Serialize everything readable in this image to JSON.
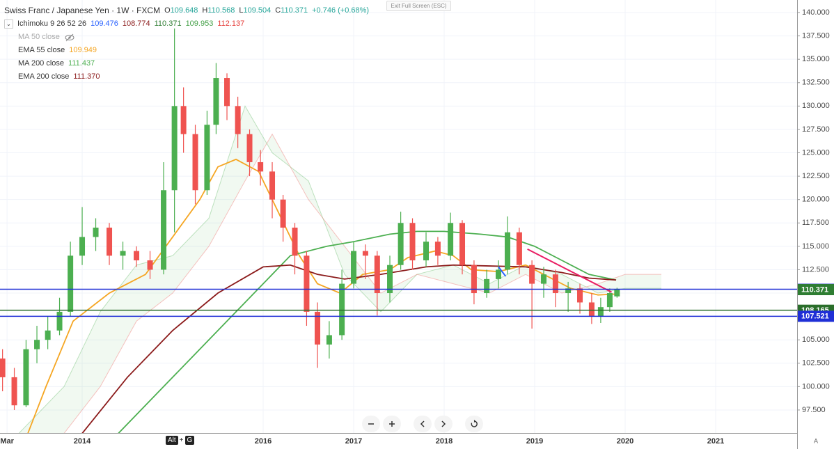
{
  "header": {
    "title": "Swiss Franc / Japanese Yen · 1W · FXCM",
    "ohlc": [
      {
        "label": "O",
        "value": "109.648"
      },
      {
        "label": "H",
        "value": "110.568"
      },
      {
        "label": "L",
        "value": "109.504"
      },
      {
        "label": "C",
        "value": "110.371"
      }
    ],
    "change": "+0.746 (+0.68%)",
    "ichimoku": {
      "name": "Ichimoku 9 26 52 26",
      "values": [
        {
          "v": "109.476",
          "color": "#2962ff"
        },
        {
          "v": "108.774",
          "color": "#8b1a1a"
        },
        {
          "v": "110.371",
          "color": "#2e7d32"
        },
        {
          "v": "109.953",
          "color": "#43a047"
        },
        {
          "v": "112.137",
          "color": "#e53935"
        }
      ]
    },
    "ma50": "MA 50 close"
  },
  "ui": {
    "exit": "Exit Full Screen (ESC)",
    "shortcut": [
      "Alt",
      "+",
      "G"
    ],
    "auto": "A"
  },
  "chart_data": {
    "type": "candlestick",
    "xlim": [
      2013.092,
      2021.9
    ],
    "ylim": [
      95.04,
      141.34
    ],
    "xticks": [
      {
        "value": 2013.17,
        "label": "Mar"
      },
      2014,
      2016,
      2017,
      2018,
      2019,
      2020,
      2021
    ],
    "yticks": [
      {
        "value": 97.5,
        "label": "97.500"
      },
      {
        "value": 100,
        "label": "100.000"
      },
      {
        "value": 102.5,
        "label": "102.500"
      },
      {
        "value": 105,
        "label": "105.000"
      },
      {
        "value": 107.5,
        "label": "107.500"
      },
      {
        "value": 110,
        "label": "110.000"
      },
      {
        "value": 112.5,
        "label": "112.500"
      },
      {
        "value": 115,
        "label": "115.000"
      },
      {
        "value": 117.5,
        "label": "117.500"
      },
      {
        "value": 120,
        "label": "120.000"
      },
      {
        "value": 122.5,
        "label": "122.500"
      },
      {
        "value": 125,
        "label": "125.000"
      },
      {
        "value": 127.5,
        "label": "127.500"
      },
      {
        "value": 130,
        "label": "130.000"
      },
      {
        "value": 132.5,
        "label": "132.500"
      },
      {
        "value": 135,
        "label": "135.000"
      },
      {
        "value": 137.5,
        "label": "137.500"
      },
      {
        "value": 140,
        "label": "140.000"
      }
    ],
    "grid": true,
    "up_color": "#4caf50",
    "down_color": "#ef5350",
    "x": [
      2013.12,
      2013.25,
      2013.38,
      2013.5,
      2013.62,
      2013.75,
      2013.87,
      2014.0,
      2014.15,
      2014.3,
      2014.45,
      2014.6,
      2014.75,
      2014.9,
      2015.02,
      2015.12,
      2015.25,
      2015.38,
      2015.48,
      2015.6,
      2015.72,
      2015.85,
      2015.97,
      2016.1,
      2016.22,
      2016.35,
      2016.48,
      2016.6,
      2016.73,
      2016.87,
      2017.0,
      2017.13,
      2017.26,
      2017.4,
      2017.52,
      2017.65,
      2017.8,
      2017.93,
      2018.07,
      2018.2,
      2018.33,
      2018.47,
      2018.6,
      2018.7,
      2018.83,
      2018.97,
      2019.1,
      2019.23,
      2019.37,
      2019.5,
      2019.63,
      2019.73,
      2019.83,
      2019.91
    ],
    "open": [
      103,
      101,
      98,
      104,
      105,
      106,
      108,
      114,
      116,
      117,
      114,
      114.5,
      113.5,
      112.5,
      121,
      130,
      127,
      121,
      128,
      133,
      130,
      127,
      124,
      123,
      120,
      117,
      114,
      108,
      104.5,
      105.5,
      111,
      114.5,
      114,
      110,
      113,
      117.5,
      113.5,
      115.5,
      114,
      117.5,
      113,
      110,
      111.5,
      112.5,
      116.5,
      113,
      111,
      112,
      110,
      110.5,
      109,
      107.5,
      108.5,
      109.648
    ],
    "high": [
      104,
      102,
      105,
      106.5,
      107.5,
      109.5,
      115.5,
      119.2,
      118,
      117.5,
      115.5,
      115,
      114.5,
      124,
      138.3,
      132,
      128,
      129.5,
      134.6,
      133.5,
      131,
      127.5,
      125.3,
      124,
      120.5,
      117.5,
      114.5,
      109,
      107,
      112.5,
      115.5,
      115.2,
      114.5,
      114,
      118.7,
      118,
      116.5,
      116,
      118.6,
      117.8,
      113.5,
      112.5,
      113.5,
      118.2,
      117,
      113.5,
      112.8,
      112.5,
      111.2,
      111,
      110,
      109.5,
      110.5,
      110.568
    ],
    "low": [
      99.5,
      97.5,
      97.8,
      102.5,
      104,
      105.5,
      107.5,
      113,
      114.5,
      113,
      112.5,
      112.8,
      111.5,
      112,
      116.5,
      125,
      119.5,
      120.5,
      127,
      128.5,
      125.5,
      122.5,
      121.5,
      118,
      115.5,
      112,
      106.5,
      102,
      103,
      105,
      110.5,
      111.5,
      107.6,
      109,
      112.5,
      112.5,
      112.8,
      113,
      113.5,
      112,
      108.8,
      109.5,
      110.5,
      112,
      112,
      106.2,
      109.5,
      108.5,
      108,
      107.8,
      106.7,
      106.8,
      108,
      109.504
    ],
    "close": [
      101,
      98,
      104,
      105,
      106,
      108,
      114,
      116,
      117,
      114,
      114.5,
      113.5,
      112.5,
      121,
      130,
      127,
      121,
      128,
      133,
      130,
      127,
      124,
      123,
      120,
      117,
      114,
      108,
      104.5,
      105.5,
      111,
      114.5,
      114,
      110,
      113,
      117.5,
      113.5,
      115.5,
      114,
      117.5,
      113,
      110,
      111.5,
      112.5,
      116.5,
      113,
      111,
      112,
      110,
      110.5,
      109,
      107.5,
      108.5,
      110,
      110.371
    ],
    "cloud": {
      "x": [
        2013.3,
        2013.8,
        2014.2,
        2014.6,
        2015.0,
        2015.4,
        2015.8,
        2016.1,
        2016.5,
        2016.9,
        2017.3,
        2017.7,
        2018.1,
        2018.5,
        2018.9,
        2019.3,
        2019.7,
        2020.0,
        2020.4
      ],
      "span_a": [
        95,
        100,
        108,
        113,
        114,
        118,
        130,
        125,
        122,
        112,
        108,
        112,
        113,
        111,
        113,
        112,
        110,
        110.5,
        110.5
      ],
      "span_b": [
        95,
        95,
        100,
        107,
        110,
        115,
        122,
        127,
        120,
        115,
        110,
        112,
        111,
        110,
        112,
        110,
        111,
        112,
        112
      ]
    },
    "series": [
      {
        "name": "EMA 55 close",
        "legend_value": "109.949",
        "color": "#f5a623",
        "x": [
          2013.4,
          2013.6,
          2013.9,
          2014.3,
          2014.7,
          2015.0,
          2015.3,
          2015.5,
          2015.7,
          2015.95,
          2016.2,
          2016.4,
          2016.6,
          2016.85,
          2017.1,
          2017.4,
          2017.6,
          2017.9,
          2018.1,
          2018.3,
          2018.6,
          2018.9,
          2019.1,
          2019.4,
          2019.7,
          2019.9
        ],
        "values": [
          95,
          100,
          107,
          110,
          112,
          116,
          120,
          123.5,
          124.3,
          123,
          118,
          114,
          111,
          110,
          112,
          112.5,
          113.8,
          114.5,
          114,
          112.5,
          112.3,
          113,
          112,
          110.5,
          109.8,
          109.9
        ]
      },
      {
        "name": "MA 200 close",
        "legend_value": "111.437",
        "color": "#4caf50",
        "x": [
          2014.4,
          2015.0,
          2015.5,
          2016.0,
          2016.3,
          2016.7,
          2017.0,
          2017.4,
          2017.7,
          2018.0,
          2018.4,
          2018.7,
          2019.0,
          2019.3,
          2019.6,
          2019.9
        ],
        "values": [
          95,
          101,
          106,
          111,
          114,
          115,
          115.5,
          116.3,
          116.6,
          116.6,
          116.3,
          116,
          115,
          113.5,
          112,
          111.4
        ]
      },
      {
        "name": "EMA 200 close",
        "legend_value": "111.370",
        "color": "#8b1a1a",
        "x": [
          2014.0,
          2014.5,
          2015.0,
          2015.5,
          2016.0,
          2016.3,
          2016.6,
          2016.9,
          2017.3,
          2017.8,
          2018.1,
          2018.5,
          2018.9,
          2019.3,
          2019.6,
          2019.9
        ],
        "values": [
          95,
          101,
          106,
          110,
          112.8,
          113,
          112,
          111.5,
          112,
          112.8,
          113,
          112.9,
          112.8,
          112.2,
          111.6,
          111.4
        ]
      }
    ],
    "trendlines": [
      {
        "x": [
          2018.92,
          2019.85
        ],
        "values": [
          114.7,
          110.1
        ],
        "color": "#e91e63"
      },
      {
        "x": [
          2018.6,
          2018.68
        ],
        "values": [
          112.8,
          111.8
        ],
        "color": "#2962ff"
      }
    ],
    "hlines": [
      {
        "value": 110.407,
        "color": "#1f2fd6"
      },
      {
        "value": 108.165,
        "color": "#2a6e2a"
      },
      {
        "value": 107.521,
        "color": "#1f2fd6"
      }
    ],
    "last_price": {
      "value": 110.371,
      "color": "#2e7d32"
    }
  }
}
